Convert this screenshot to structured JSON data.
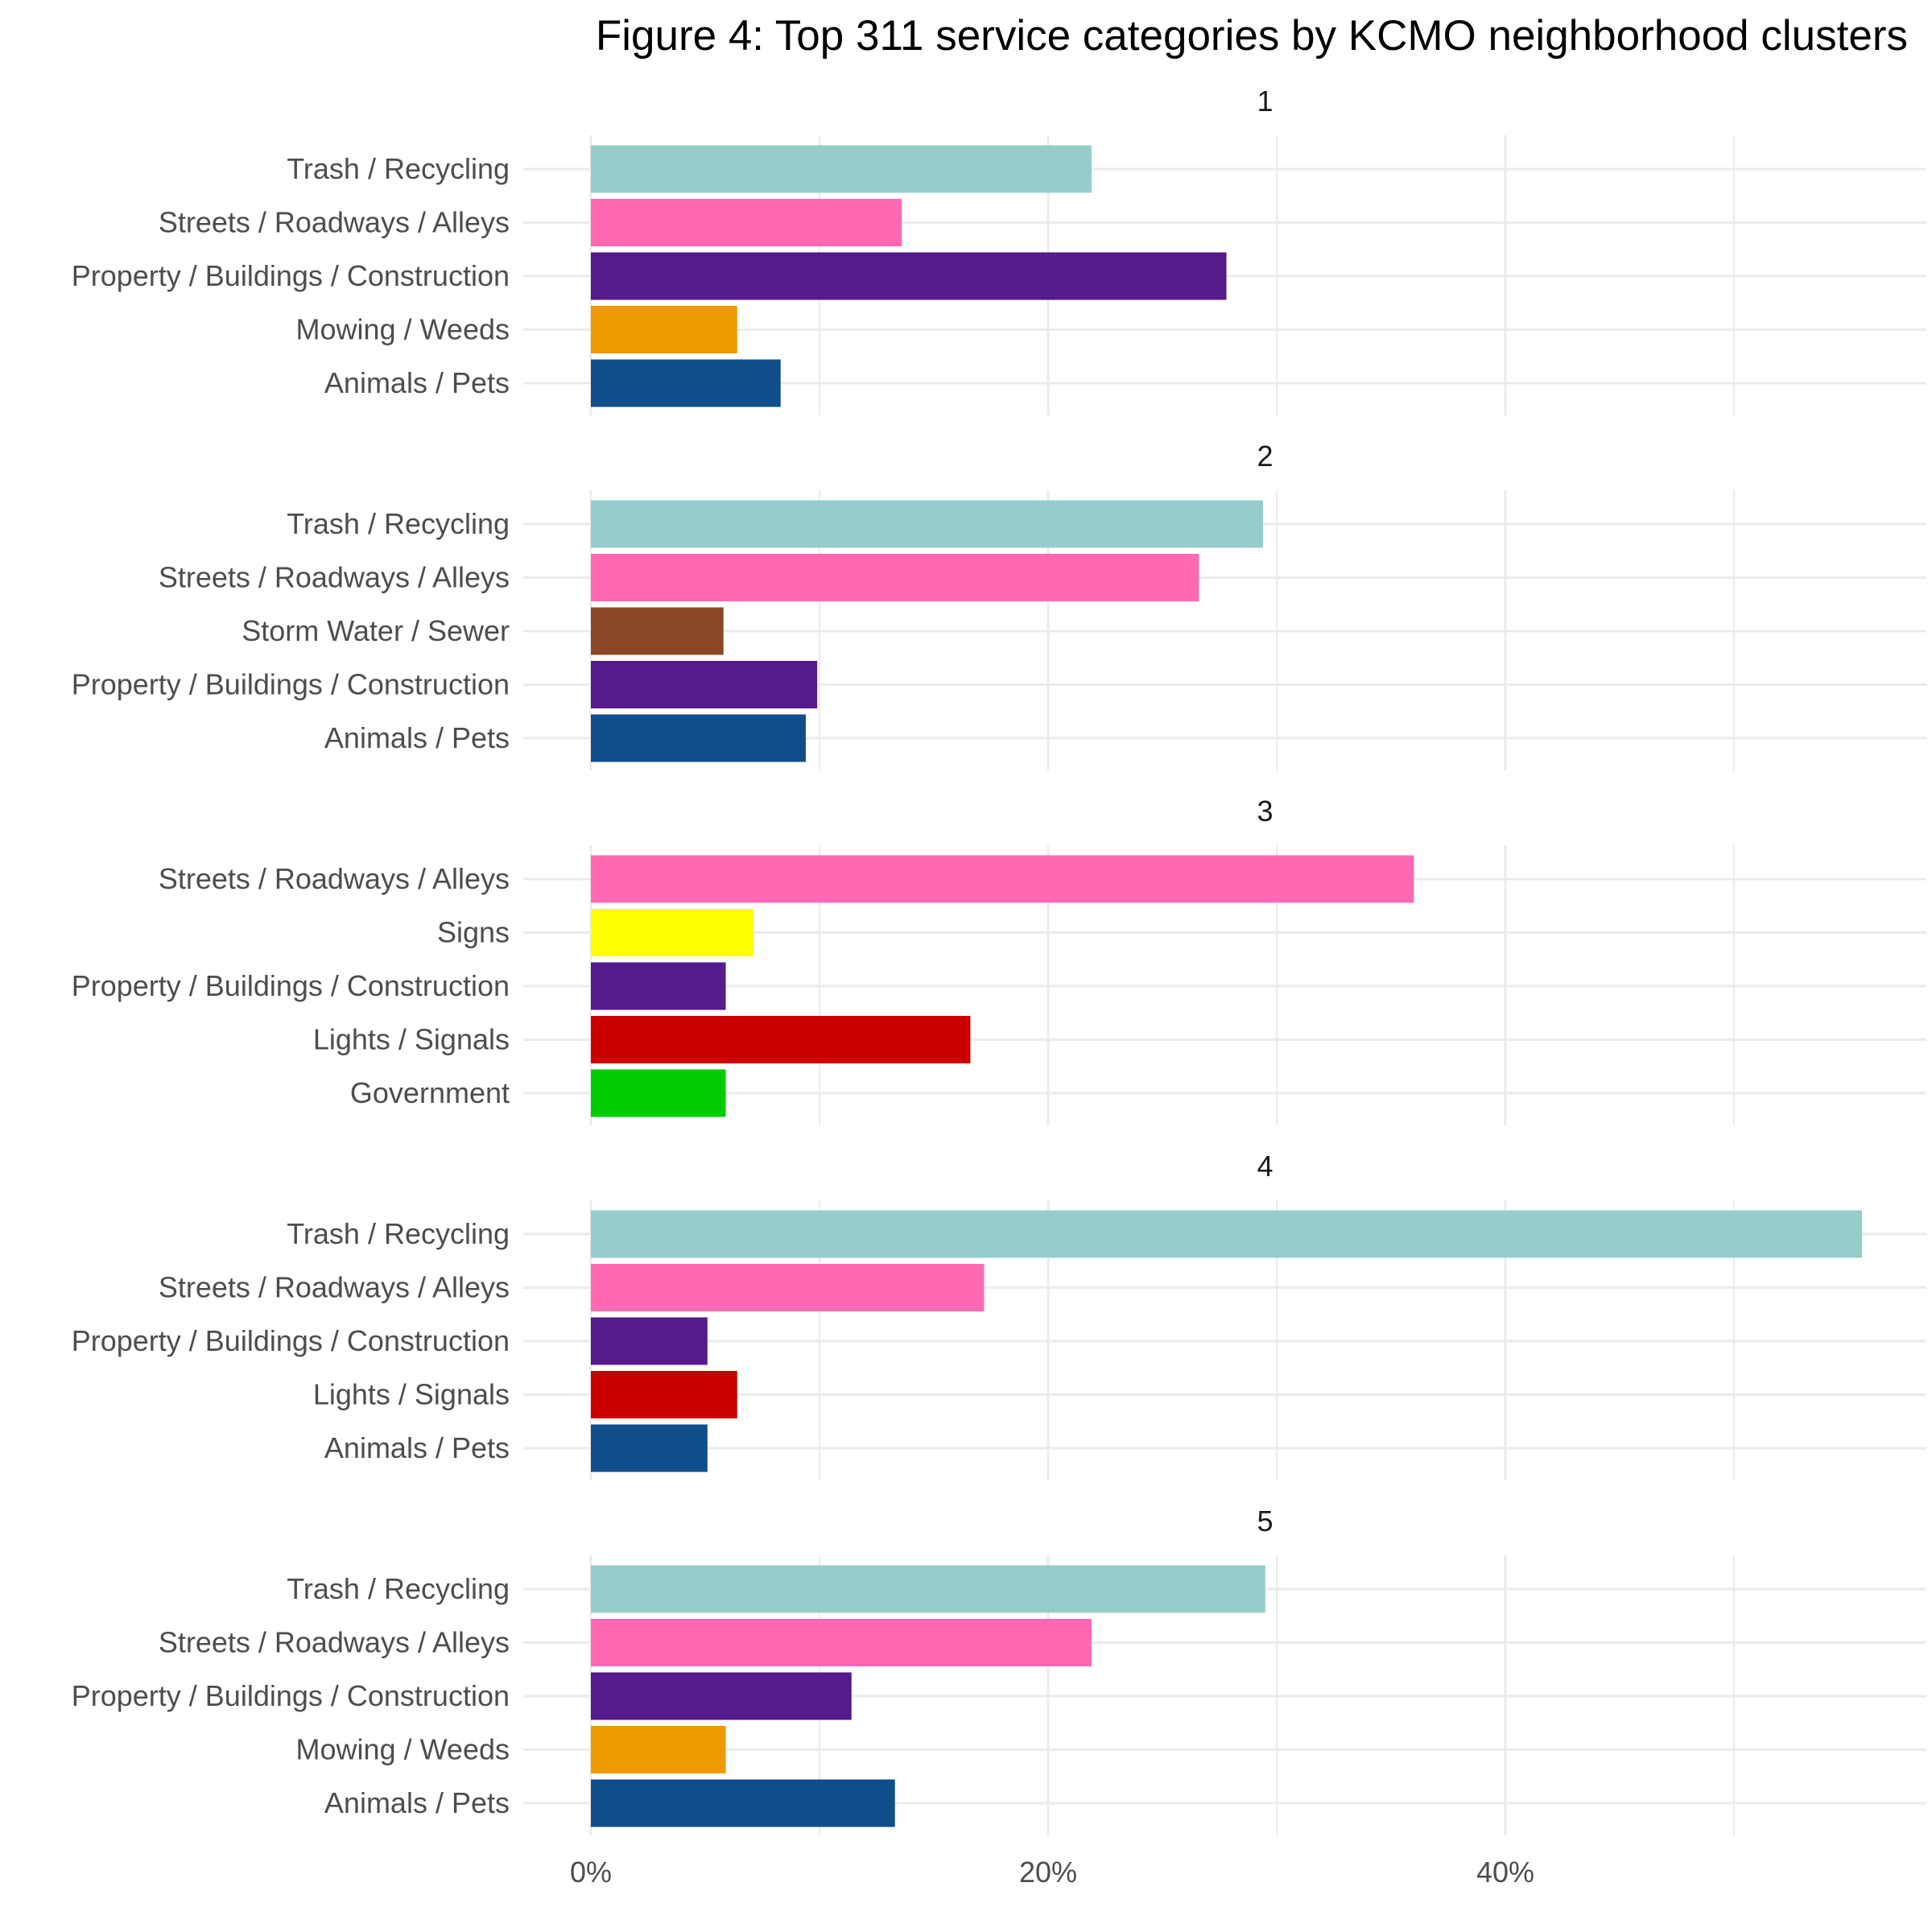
{
  "chart_data": {
    "type": "bar",
    "orientation": "horizontal",
    "title": "Figure 4: Top 311 service categories by KCMO neighborhood clusters",
    "xlim": [
      0,
      58
    ],
    "x_ticks": [
      {
        "value": 0,
        "label": "0%"
      },
      {
        "value": 20,
        "label": "20%"
      },
      {
        "value": 40,
        "label": "40%"
      }
    ],
    "grid": true,
    "category_colors": {
      "Trash / Recycling": "#96cdcb",
      "Streets / Roadways / Alleys": "#ff69b4",
      "Property / Buildings / Construction": "#551a8b",
      "Mowing / Weeds": "#ee9a00",
      "Animals / Pets": "#104e8b",
      "Storm Water / Sewer": "#8b4726",
      "Signs": "#ffff00",
      "Lights / Signals": "#cd0000",
      "Government": "#00cd00"
    },
    "panels": [
      {
        "label": "1",
        "bars": [
          {
            "category": "Trash / Recycling",
            "value": 21.9
          },
          {
            "category": "Streets / Roadways / Alleys",
            "value": 13.6
          },
          {
            "category": "Property / Buildings / Construction",
            "value": 27.8
          },
          {
            "category": "Mowing / Weeds",
            "value": 6.4
          },
          {
            "category": "Animals / Pets",
            "value": 8.3
          }
        ]
      },
      {
        "label": "2",
        "bars": [
          {
            "category": "Trash / Recycling",
            "value": 29.4
          },
          {
            "category": "Streets / Roadways / Alleys",
            "value": 26.6
          },
          {
            "category": "Storm Water / Sewer",
            "value": 5.8
          },
          {
            "category": "Property / Buildings / Construction",
            "value": 9.9
          },
          {
            "category": "Animals / Pets",
            "value": 9.4
          }
        ]
      },
      {
        "label": "3",
        "bars": [
          {
            "category": "Streets / Roadways / Alleys",
            "value": 36.0
          },
          {
            "category": "Signs",
            "value": 7.1
          },
          {
            "category": "Property / Buildings / Construction",
            "value": 5.9
          },
          {
            "category": "Lights / Signals",
            "value": 16.6
          },
          {
            "category": "Government",
            "value": 5.9
          }
        ]
      },
      {
        "label": "4",
        "bars": [
          {
            "category": "Trash / Recycling",
            "value": 55.6
          },
          {
            "category": "Streets / Roadways / Alleys",
            "value": 17.2
          },
          {
            "category": "Property / Buildings / Construction",
            "value": 5.1
          },
          {
            "category": "Lights / Signals",
            "value": 6.4
          },
          {
            "category": "Animals / Pets",
            "value": 5.1
          }
        ]
      },
      {
        "label": "5",
        "bars": [
          {
            "category": "Trash / Recycling",
            "value": 29.5
          },
          {
            "category": "Streets / Roadways / Alleys",
            "value": 21.9
          },
          {
            "category": "Property / Buildings / Construction",
            "value": 11.4
          },
          {
            "category": "Mowing / Weeds",
            "value": 5.9
          },
          {
            "category": "Animals / Pets",
            "value": 13.3
          }
        ]
      }
    ]
  }
}
